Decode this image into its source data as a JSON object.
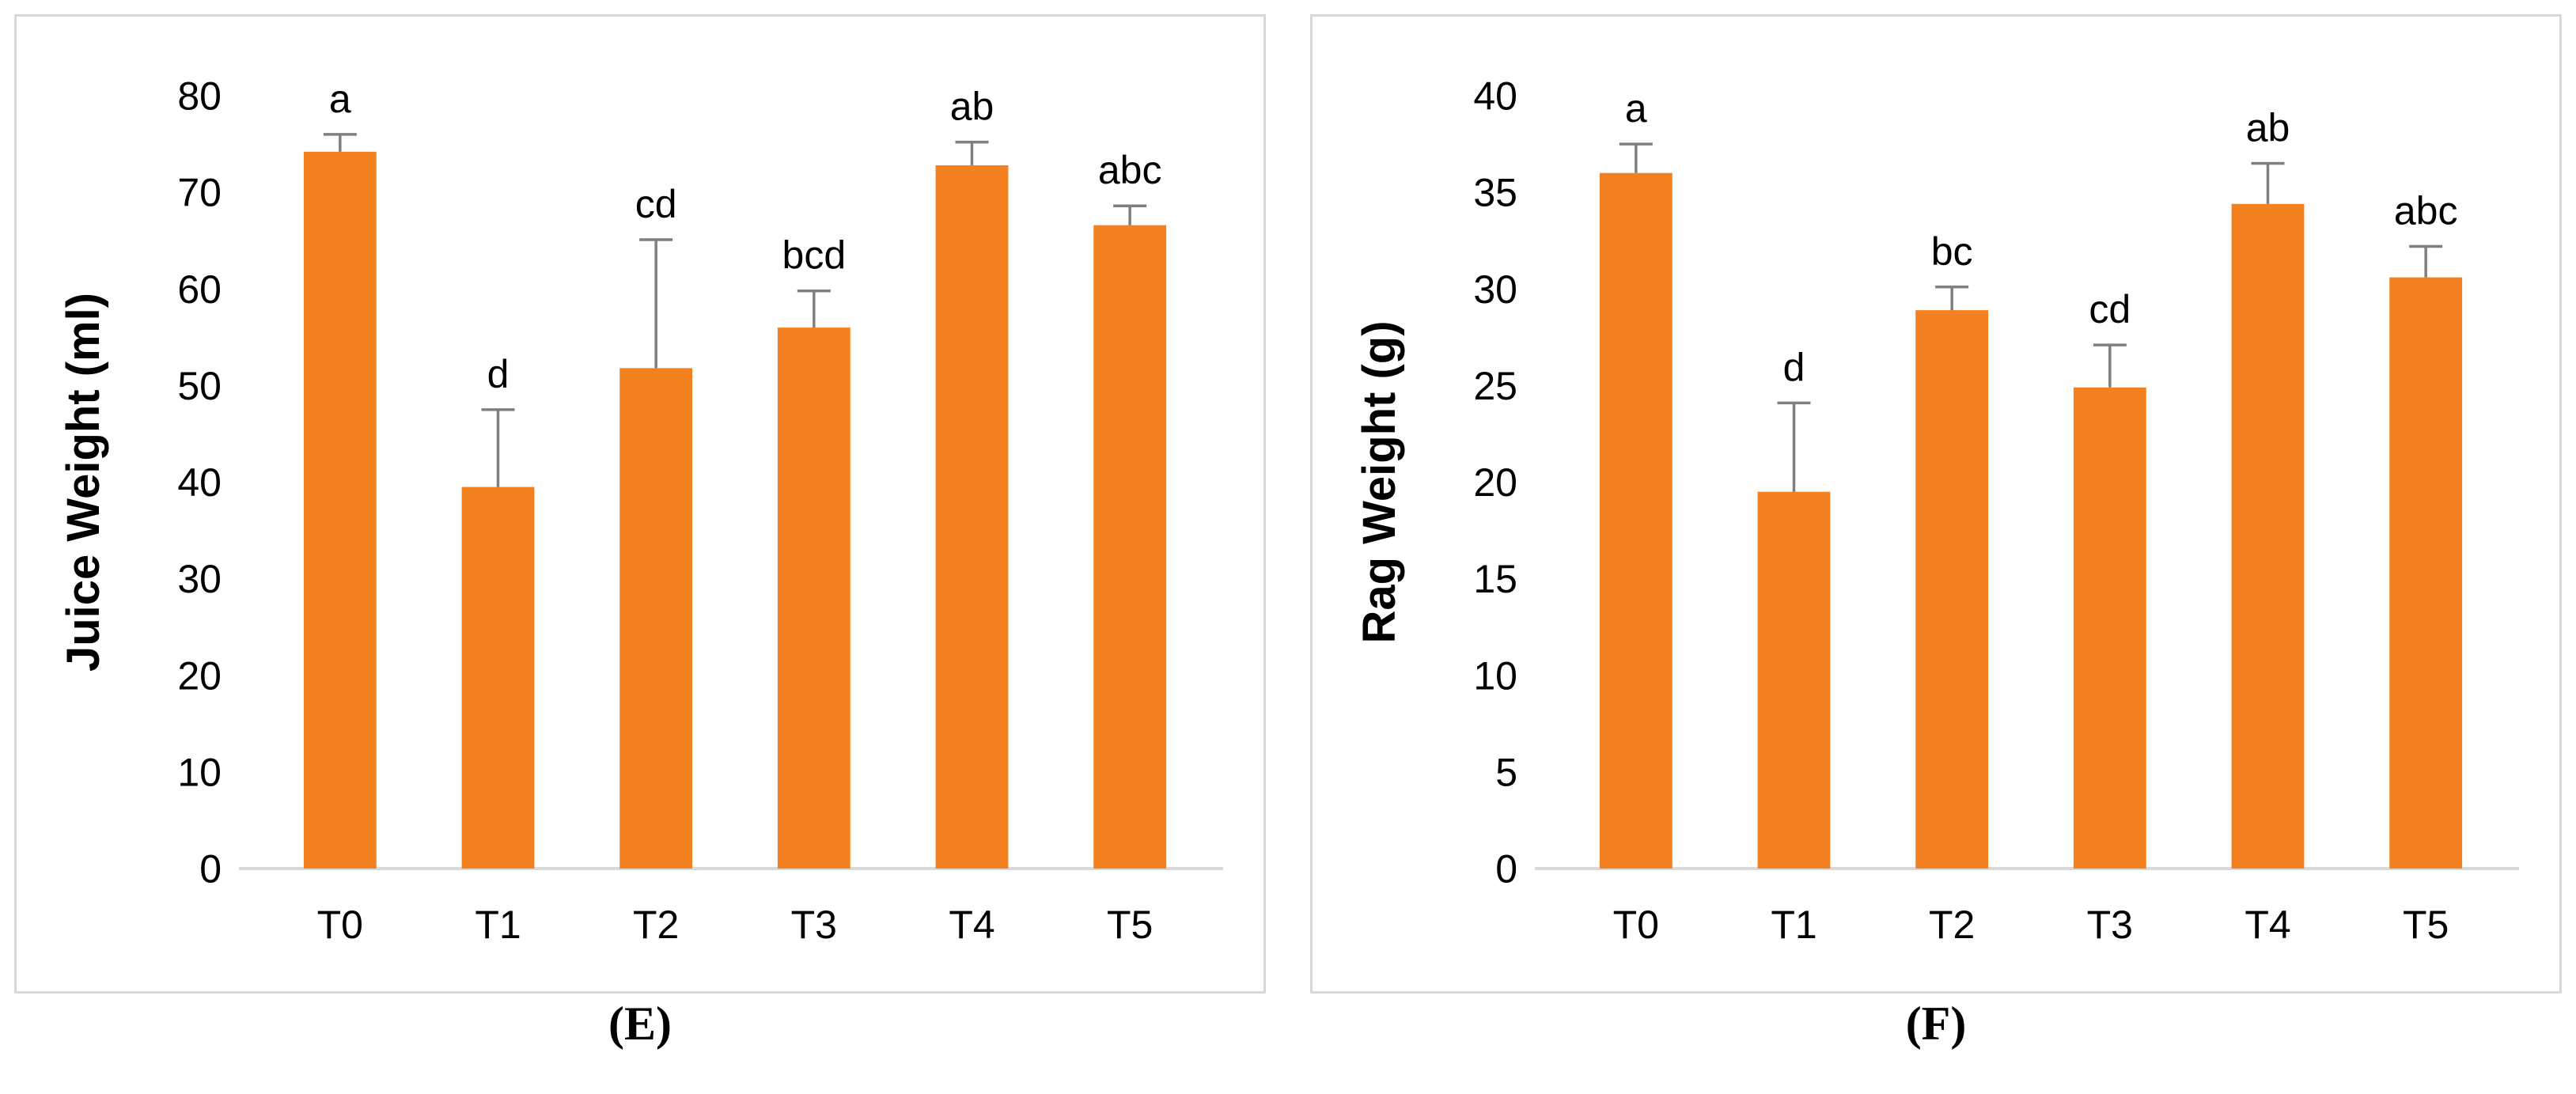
{
  "chart_data": [
    {
      "type": "bar",
      "panel_label": "(E)",
      "ylabel": "Juice Weight (ml)",
      "categories": [
        "T0",
        "T1",
        "T2",
        "T3",
        "T4",
        "T5"
      ],
      "values": [
        74.2,
        39.5,
        51.8,
        56.0,
        72.8,
        66.6
      ],
      "errors": [
        1.8,
        8.0,
        13.3,
        3.8,
        2.4,
        2.0
      ],
      "letters": [
        "a",
        "d",
        "cd",
        "bcd",
        "ab",
        "abc"
      ],
      "ylim": [
        0,
        80
      ],
      "ytick_step": 10,
      "bar_color": "#F4811F",
      "error_color": "#7F7F7F",
      "axis_color": "#D9D9D9",
      "legend": "none",
      "grid": "off"
    },
    {
      "type": "bar",
      "panel_label": "(F)",
      "ylabel": "Rag Weight (g)",
      "categories": [
        "T0",
        "T1",
        "T2",
        "T3",
        "T4",
        "T5"
      ],
      "values": [
        36.0,
        19.5,
        28.9,
        24.9,
        34.4,
        30.6
      ],
      "errors": [
        1.5,
        4.6,
        1.2,
        2.2,
        2.1,
        1.6
      ],
      "letters": [
        "a",
        "d",
        "bc",
        "cd",
        "ab",
        "abc"
      ],
      "ylim": [
        0,
        40
      ],
      "ytick_step": 5,
      "bar_color": "#F4811F",
      "error_color": "#7F7F7F",
      "axis_color": "#D9D9D9",
      "legend": "none",
      "grid": "off"
    }
  ]
}
